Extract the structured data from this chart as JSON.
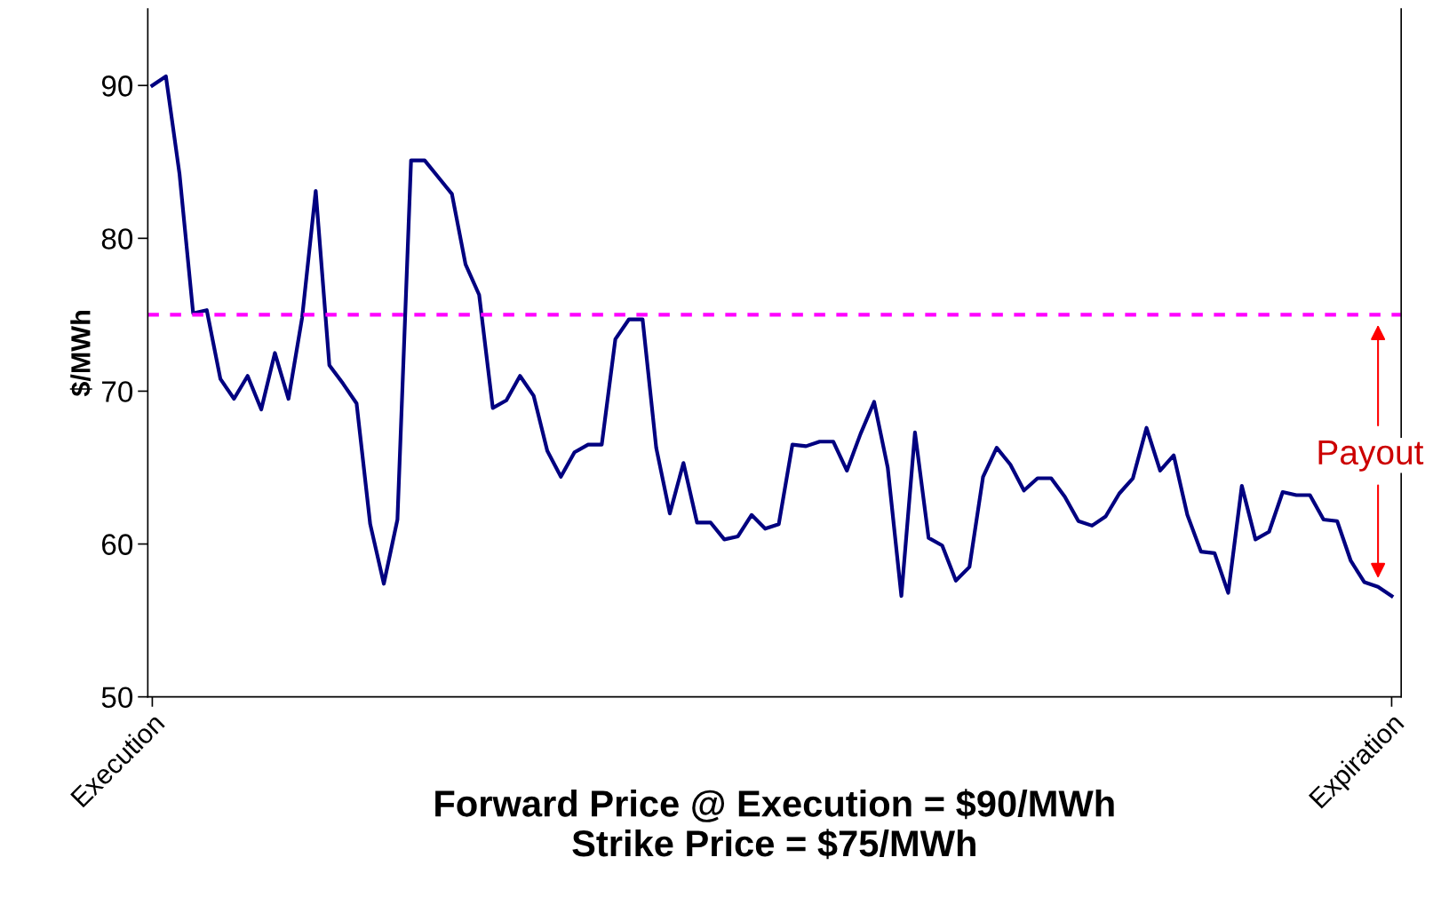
{
  "chart_data": {
    "type": "line",
    "xlabel": "Forward Price @ Execution = $90/MWh\nStrike Price = $75/MWh",
    "ylabel": "$/MWh",
    "categories": [
      "Execution",
      null,
      null,
      null,
      null,
      null,
      null,
      null,
      null,
      null,
      null,
      null,
      null,
      null,
      null,
      null,
      null,
      null,
      null,
      null,
      null,
      null,
      null,
      null,
      null,
      null,
      null,
      null,
      null,
      null,
      null,
      null,
      null,
      null,
      null,
      null,
      null,
      null,
      null,
      null,
      null,
      null,
      null,
      null,
      null,
      null,
      null,
      null,
      null,
      null,
      null,
      null,
      null,
      null,
      null,
      null,
      null,
      null,
      null,
      null,
      null,
      null,
      null,
      null,
      null,
      null,
      null,
      null,
      null,
      null,
      null,
      null,
      null,
      null,
      null,
      null,
      null,
      null,
      null,
      null,
      null,
      null,
      null,
      null,
      null,
      null,
      null,
      null,
      null,
      null,
      null,
      "Expiration"
    ],
    "series": [
      {
        "color": "#000080",
        "values": [
          90.0,
          90.6,
          84.2,
          75.1,
          75.3,
          70.8,
          69.5,
          71.0,
          68.8,
          72.5,
          69.5,
          74.8,
          83.1,
          71.7,
          70.5,
          69.2,
          61.3,
          57.4,
          61.6,
          85.1,
          85.1,
          84.0,
          82.9,
          78.3,
          76.3,
          68.9,
          69.4,
          71.0,
          69.7,
          66.1,
          64.4,
          66.0,
          66.5,
          66.5,
          73.4,
          74.7,
          74.7,
          66.3,
          62.0,
          65.3,
          61.4,
          61.4,
          60.3,
          60.5,
          61.9,
          61.0,
          61.3,
          66.5,
          66.4,
          66.7,
          66.7,
          64.8,
          67.2,
          69.3,
          65.0,
          56.6,
          67.3,
          60.4,
          59.9,
          57.6,
          58.5,
          64.4,
          66.3,
          65.2,
          63.5,
          64.3,
          64.3,
          63.1,
          61.5,
          61.2,
          61.8,
          63.3,
          64.3,
          67.6,
          64.8,
          65.8,
          61.9,
          59.5,
          59.4,
          56.8,
          63.8,
          60.3,
          60.8,
          63.4,
          63.2,
          63.2,
          61.6,
          61.5,
          58.9,
          57.5,
          57.2,
          56.6
        ]
      }
    ],
    "ylim": [
      50,
      95
    ],
    "yticks": [
      50,
      60,
      70,
      80,
      90
    ],
    "grid": false,
    "marker": "none",
    "line_style": "solid",
    "ref_lines": [
      {
        "axis": "y",
        "value": 75,
        "color": "#ff00ff",
        "line_style": "dashed"
      }
    ],
    "annotations": [
      "Payout"
    ]
  }
}
